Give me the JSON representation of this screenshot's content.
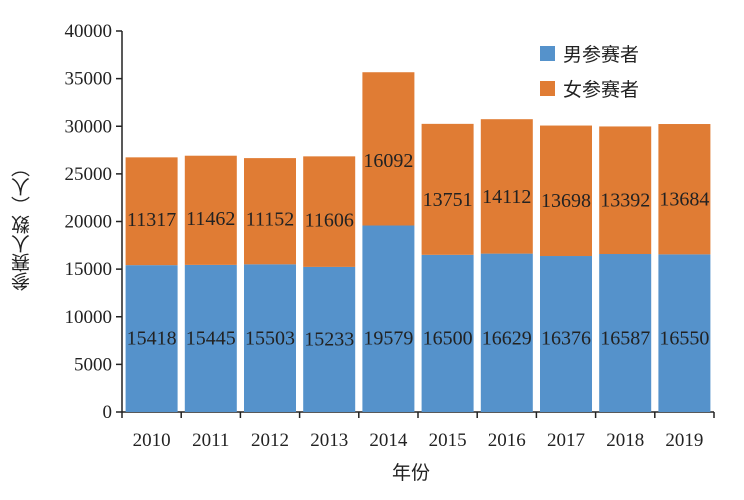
{
  "chart_data": {
    "type": "bar",
    "stacked": true,
    "categories": [
      "2010",
      "2011",
      "2012",
      "2013",
      "2014",
      "2015",
      "2016",
      "2017",
      "2018",
      "2019"
    ],
    "series": [
      {
        "name": "男参赛者",
        "color": "#5592cb",
        "values": [
          15418,
          15445,
          15503,
          15233,
          19579,
          16500,
          16629,
          16376,
          16587,
          16550
        ]
      },
      {
        "name": "女参赛者",
        "color": "#e07c34",
        "values": [
          11317,
          11462,
          11152,
          11606,
          16092,
          13751,
          14112,
          13698,
          13392,
          13684
        ]
      }
    ],
    "xlabel": "年份",
    "ylabel": "参赛人数（人）",
    "ylim": [
      0,
      40000
    ],
    "yticks": [
      0,
      5000,
      10000,
      15000,
      20000,
      25000,
      30000,
      35000,
      40000
    ],
    "legend_position": "top-right",
    "grid": false
  }
}
